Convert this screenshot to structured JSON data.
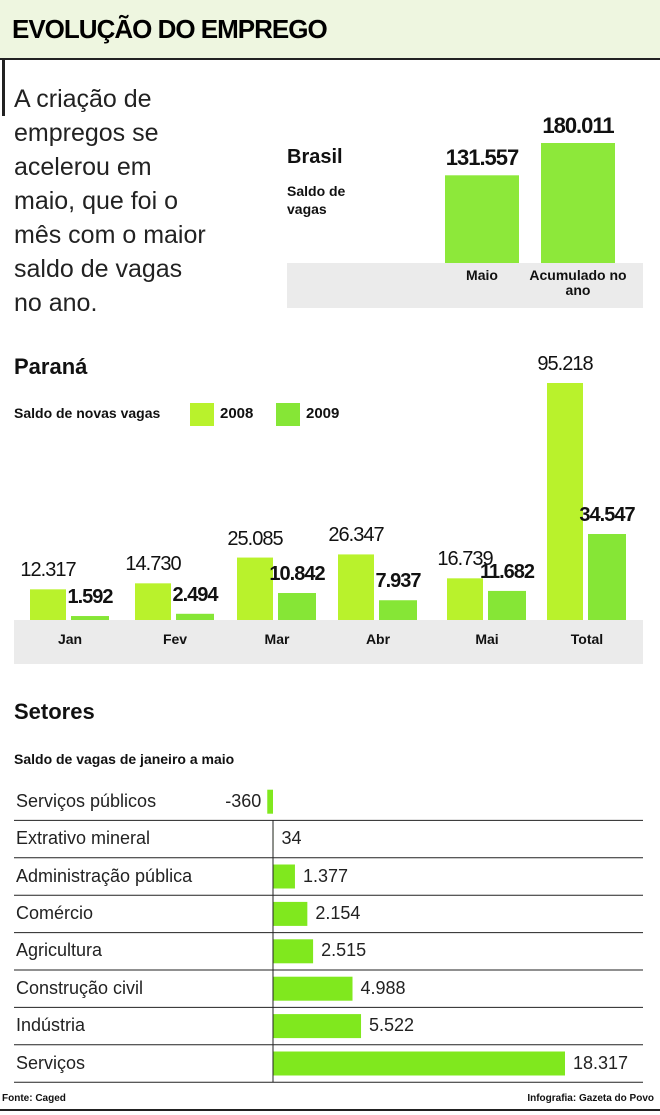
{
  "header": {
    "title": "EVOLUÇÃO DO EMPREGO"
  },
  "intro": "A criação de empregos se acelerou em maio, que foi o mês com o maior saldo de vagas no ano.",
  "chart_data": [
    {
      "type": "bar",
      "title": "Brasil",
      "subtitle": "Saldo de vagas",
      "categories": [
        "Maio",
        "Acumulado no ano"
      ],
      "values": [
        131557,
        180011
      ],
      "value_labels": [
        "131.557",
        "180.011"
      ],
      "color": "#8de83a"
    },
    {
      "type": "bar",
      "title": "Paraná",
      "subtitle": "Saldo de novas vagas",
      "categories": [
        "Jan",
        "Fev",
        "Mar",
        "Abr",
        "Mai",
        "Total"
      ],
      "series": [
        {
          "name": "2008",
          "color": "#b9f22c",
          "values": [
            12317,
            14730,
            25085,
            26347,
            16739,
            95218
          ],
          "value_labels": [
            "12.317",
            "14.730",
            "25.085",
            "26.347",
            "16.739",
            "95.218"
          ]
        },
        {
          "name": "2009",
          "color": "#86e636",
          "values": [
            1592,
            2494,
            10842,
            7937,
            11682,
            34547
          ],
          "value_labels": [
            "1.592",
            "2.494",
            "10.842",
            "7.937",
            "11.682",
            "34.547"
          ]
        }
      ]
    },
    {
      "type": "hbar",
      "title": "Setores",
      "subtitle": "Saldo de vagas de janeiro a maio",
      "categories": [
        "Serviços públicos",
        "Extrativo mineral",
        "Administração pública",
        "Comércio",
        "Agricultura",
        "Construção civil",
        "Indústria",
        "Serviços"
      ],
      "values": [
        -360,
        34,
        1377,
        2154,
        2515,
        4988,
        5522,
        18317
      ],
      "value_labels": [
        "-360",
        "34",
        "1.377",
        "2.154",
        "2.515",
        "4.988",
        "5.522",
        "18.317"
      ],
      "color": "#80e81e"
    }
  ],
  "footer": {
    "source": "Fonte: Caged",
    "credit": "Infografia: Gazeta do Povo"
  }
}
